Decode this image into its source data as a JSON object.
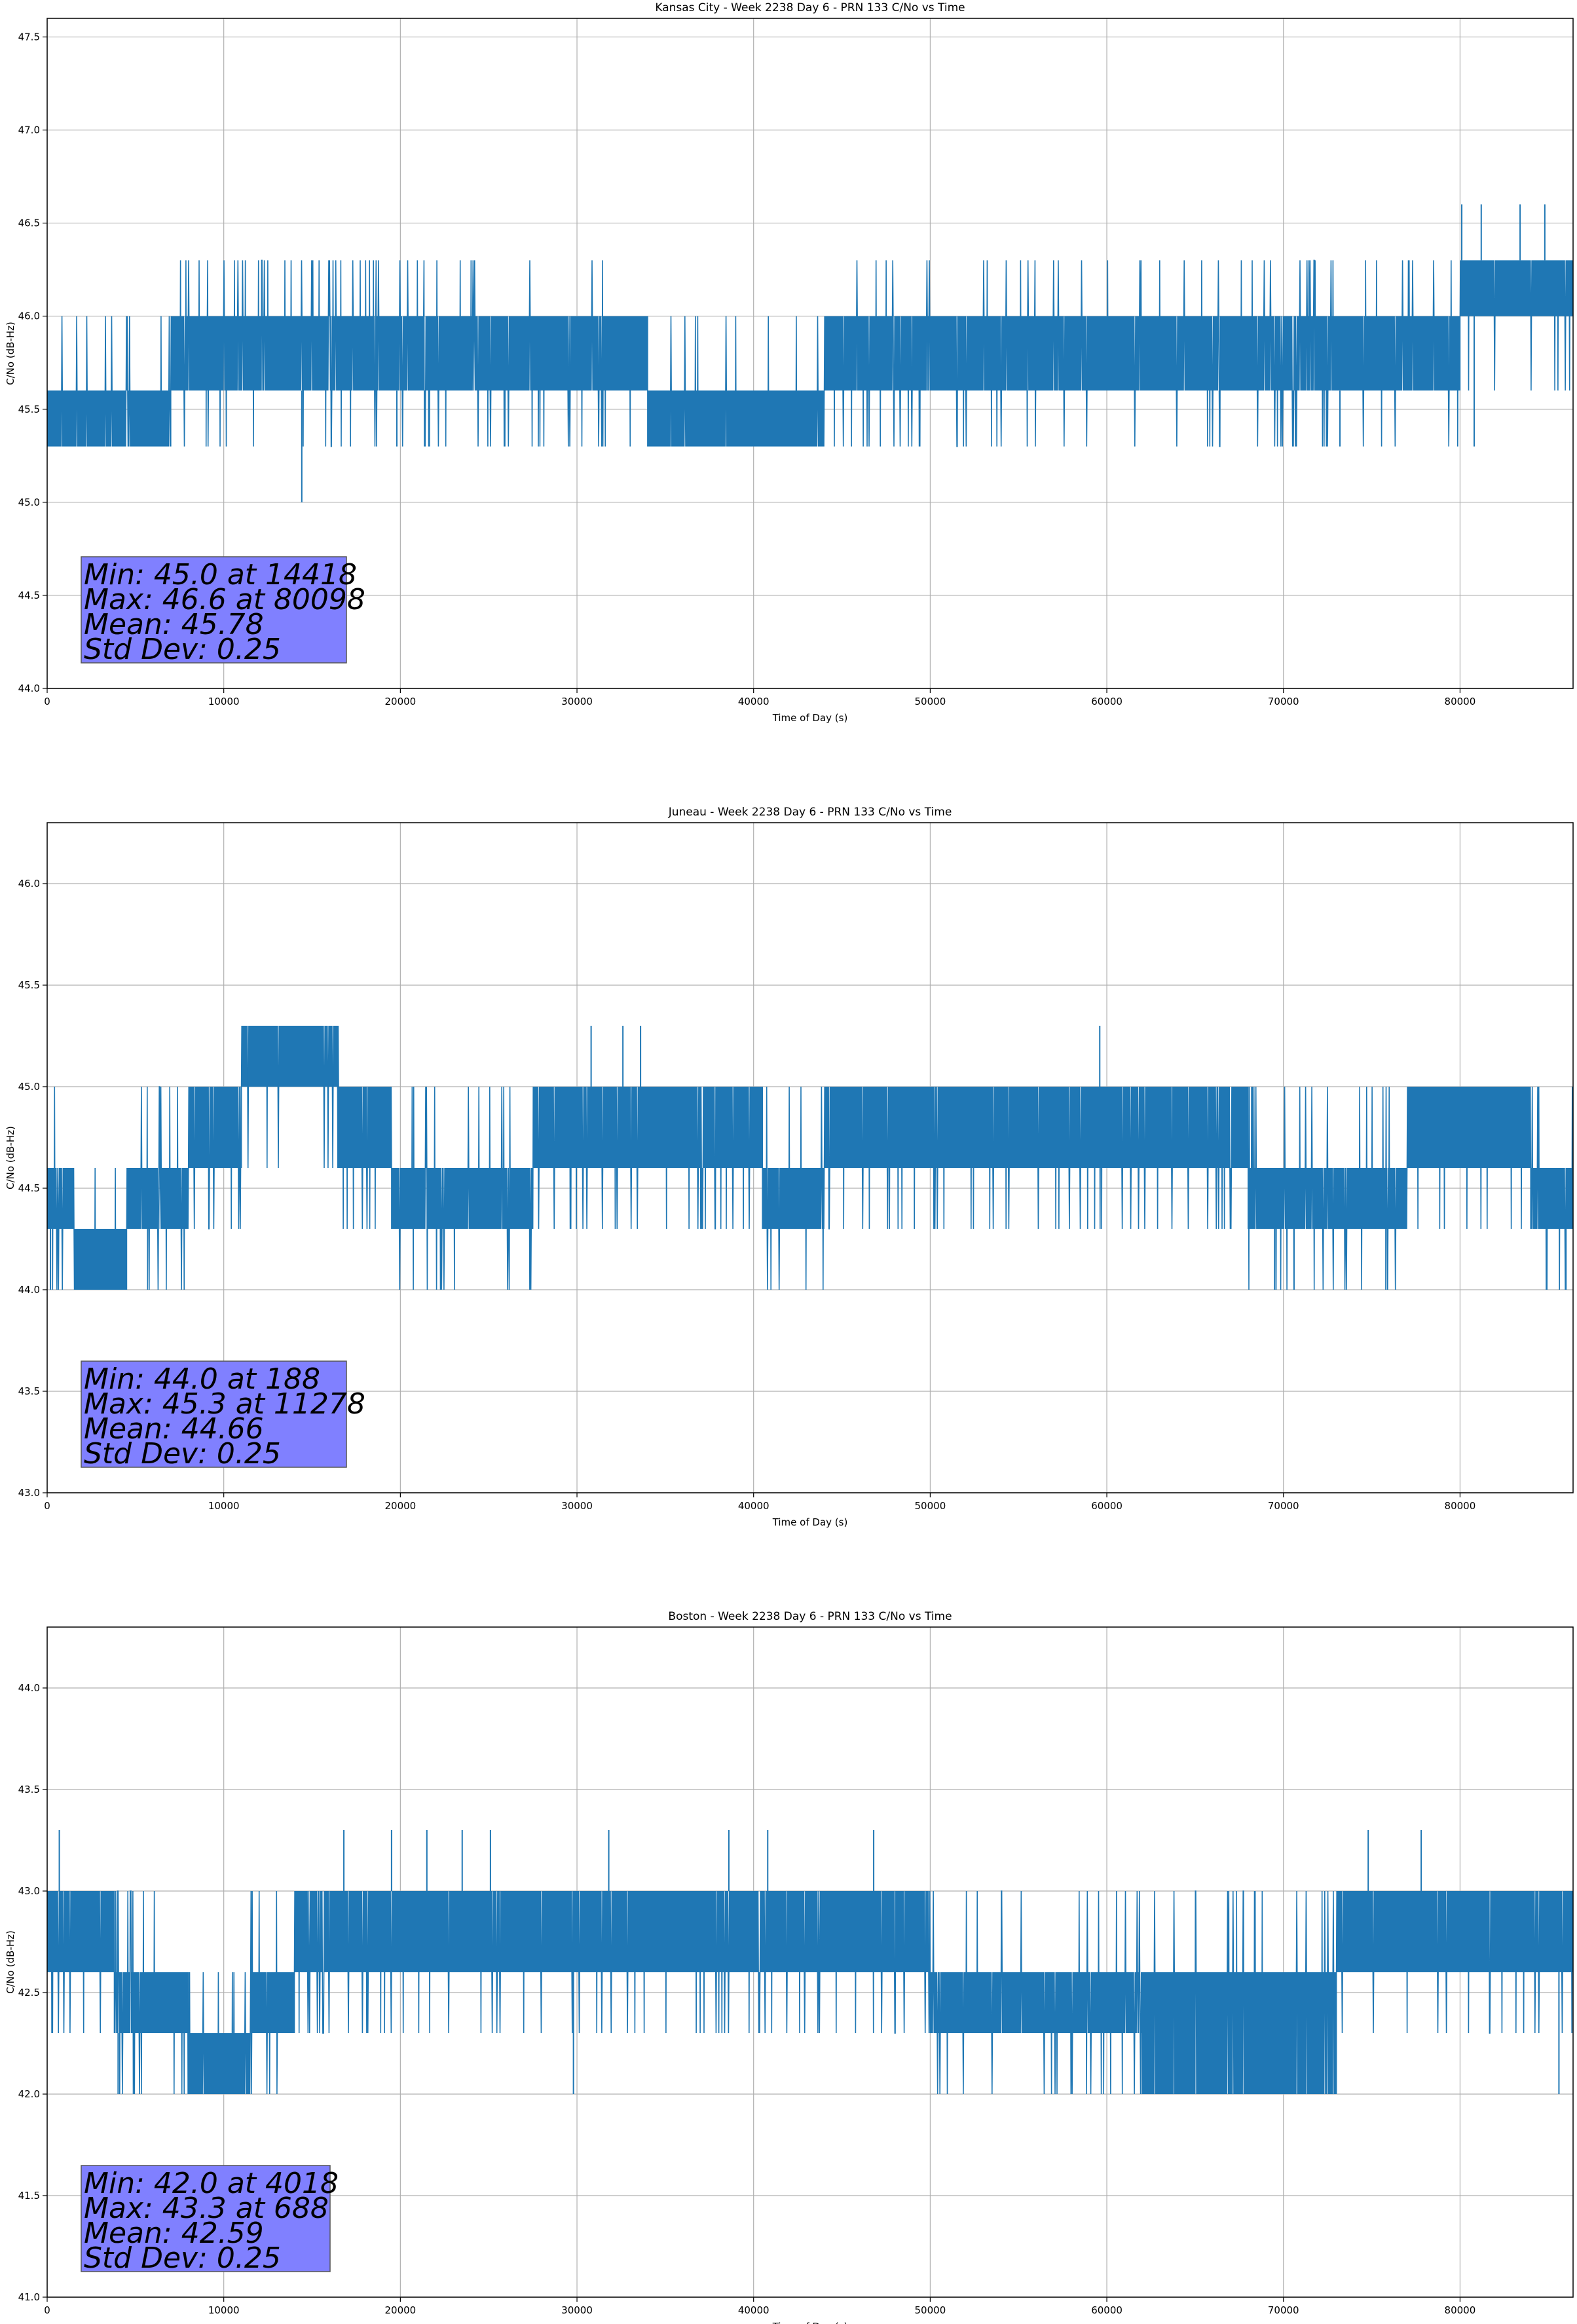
{
  "chart_data": [
    {
      "type": "line",
      "title": "Kansas City - Week 2238 Day 6 - PRN 133 C/No vs Time",
      "xlabel": "Time of Day (s)",
      "ylabel": "C/No (dB-Hz)",
      "xlim": [
        0,
        86400
      ],
      "ylim": [
        44.0,
        47.6
      ],
      "xticks": [
        "0",
        "10000",
        "20000",
        "30000",
        "40000",
        "50000",
        "60000",
        "70000",
        "80000"
      ],
      "yticks": [
        "44.0",
        "44.5",
        "45.0",
        "45.5",
        "46.0",
        "46.5",
        "47.0",
        "47.5"
      ],
      "grid": true,
      "line_color": "#1f77b4",
      "series": [
        {
          "levels": [
            45.3,
            45.6,
            46.0,
            46.3,
            46.6
          ],
          "segments": [
            {
              "x0": 0,
              "x1": 7000,
              "lo": 45.3,
              "hi": 45.6
            },
            {
              "x0": 7000,
              "x1": 9000,
              "lo": 45.6,
              "hi": 46.0
            },
            {
              "x0": 9000,
              "x1": 19000,
              "lo": 45.6,
              "hi": 46.0
            },
            {
              "x0": 19000,
              "x1": 22000,
              "lo": 45.6,
              "hi": 46.0
            },
            {
              "x0": 22000,
              "x1": 34000,
              "lo": 45.6,
              "hi": 46.0
            },
            {
              "x0": 34000,
              "x1": 44000,
              "lo": 45.3,
              "hi": 45.6
            },
            {
              "x0": 44000,
              "x1": 47000,
              "lo": 45.6,
              "hi": 46.0
            },
            {
              "x0": 47000,
              "x1": 80000,
              "lo": 45.6,
              "hi": 46.0
            },
            {
              "x0": 80000,
              "x1": 86400,
              "lo": 46.0,
              "hi": 46.3
            }
          ],
          "spikes": [
            {
              "x": 14418,
              "y": 45.0
            },
            {
              "x": 80098,
              "y": 46.6
            },
            {
              "x": 81200,
              "y": 46.6
            },
            {
              "x": 83400,
              "y": 46.6
            },
            {
              "x": 84800,
              "y": 46.6
            },
            {
              "x": 19800,
              "y": 45.3
            },
            {
              "x": 73200,
              "y": 45.3
            },
            {
              "x": 80800,
              "y": 45.3
            }
          ]
        }
      ],
      "stats": [
        "Min: 45.0 at 14418",
        "Max: 46.6 at 80098",
        "Mean: 45.78",
        "Std Dev: 0.25"
      ]
    },
    {
      "type": "line",
      "title": "Juneau - Week 2238 Day 6 - PRN 133 C/No vs Time",
      "xlabel": "Time of Day (s)",
      "ylabel": "C/No (dB-Hz)",
      "xlim": [
        0,
        86400
      ],
      "ylim": [
        43.0,
        46.3
      ],
      "xticks": [
        "0",
        "10000",
        "20000",
        "30000",
        "40000",
        "50000",
        "60000",
        "70000",
        "80000"
      ],
      "yticks": [
        "43.0",
        "43.5",
        "44.0",
        "44.5",
        "45.0",
        "45.5",
        "46.0"
      ],
      "grid": true,
      "line_color": "#1f77b4",
      "series": [
        {
          "levels": [
            44.0,
            44.3,
            44.6,
            45.0,
            45.3
          ],
          "segments": [
            {
              "x0": 0,
              "x1": 1500,
              "lo": 44.3,
              "hi": 44.6
            },
            {
              "x0": 1500,
              "x1": 4500,
              "lo": 44.0,
              "hi": 44.3
            },
            {
              "x0": 4500,
              "x1": 8000,
              "lo": 44.3,
              "hi": 44.6
            },
            {
              "x0": 8000,
              "x1": 11000,
              "lo": 44.6,
              "hi": 45.0
            },
            {
              "x0": 11000,
              "x1": 16500,
              "lo": 45.0,
              "hi": 45.3
            },
            {
              "x0": 16500,
              "x1": 19500,
              "lo": 44.6,
              "hi": 45.0
            },
            {
              "x0": 19500,
              "x1": 27500,
              "lo": 44.3,
              "hi": 44.6
            },
            {
              "x0": 27500,
              "x1": 40500,
              "lo": 44.6,
              "hi": 45.0
            },
            {
              "x0": 40500,
              "x1": 44000,
              "lo": 44.3,
              "hi": 44.6
            },
            {
              "x0": 44000,
              "x1": 68000,
              "lo": 44.6,
              "hi": 45.0
            },
            {
              "x0": 68000,
              "x1": 77000,
              "lo": 44.3,
              "hi": 44.6
            },
            {
              "x0": 77000,
              "x1": 84000,
              "lo": 44.6,
              "hi": 45.0
            },
            {
              "x0": 84000,
              "x1": 86400,
              "lo": 44.3,
              "hi": 44.6
            }
          ],
          "spikes": [
            {
              "x": 188,
              "y": 44.0
            },
            {
              "x": 11278,
              "y": 45.3
            },
            {
              "x": 30800,
              "y": 45.3
            },
            {
              "x": 32600,
              "y": 45.3
            },
            {
              "x": 33600,
              "y": 45.3
            },
            {
              "x": 59600,
              "y": 45.3
            },
            {
              "x": 69500,
              "y": 44.0
            },
            {
              "x": 70600,
              "y": 44.0
            },
            {
              "x": 75800,
              "y": 44.0
            },
            {
              "x": 86000,
              "y": 44.0
            }
          ]
        }
      ],
      "stats": [
        "Min: 44.0 at 188",
        "Max: 45.3 at 11278",
        "Mean: 44.66",
        "Std Dev: 0.25"
      ]
    },
    {
      "type": "line",
      "title": "Boston - Week 2238 Day 6 - PRN 133 C/No vs Time",
      "xlabel": "Time of Day (s)",
      "ylabel": "C/No (dB-Hz)",
      "xlim": [
        0,
        86400
      ],
      "ylim": [
        41.0,
        44.3
      ],
      "xticks": [
        "0",
        "10000",
        "20000",
        "30000",
        "40000",
        "50000",
        "60000",
        "70000",
        "80000"
      ],
      "yticks": [
        "41.0",
        "41.5",
        "42.0",
        "42.5",
        "43.0",
        "43.5",
        "44.0"
      ],
      "grid": true,
      "line_color": "#1f77b4",
      "series": [
        {
          "levels": [
            42.0,
            42.3,
            42.6,
            43.0,
            43.3
          ],
          "segments": [
            {
              "x0": 0,
              "x1": 3800,
              "lo": 42.6,
              "hi": 43.0
            },
            {
              "x0": 3800,
              "x1": 8000,
              "lo": 42.3,
              "hi": 42.6
            },
            {
              "x0": 8000,
              "x1": 11500,
              "lo": 42.0,
              "hi": 42.3
            },
            {
              "x0": 11500,
              "x1": 14000,
              "lo": 42.3,
              "hi": 42.6
            },
            {
              "x0": 14000,
              "x1": 50000,
              "lo": 42.6,
              "hi": 43.0
            },
            {
              "x0": 50000,
              "x1": 62000,
              "lo": 42.3,
              "hi": 42.6
            },
            {
              "x0": 62000,
              "x1": 73000,
              "lo": 42.0,
              "hi": 42.6
            },
            {
              "x0": 73000,
              "x1": 86400,
              "lo": 42.6,
              "hi": 43.0
            }
          ],
          "spikes": [
            {
              "x": 688,
              "y": 43.3
            },
            {
              "x": 4018,
              "y": 42.0
            },
            {
              "x": 16800,
              "y": 43.3
            },
            {
              "x": 19500,
              "y": 43.3
            },
            {
              "x": 21500,
              "y": 43.3
            },
            {
              "x": 23500,
              "y": 43.3
            },
            {
              "x": 25100,
              "y": 43.3
            },
            {
              "x": 29800,
              "y": 42.0
            },
            {
              "x": 31800,
              "y": 43.3
            },
            {
              "x": 38600,
              "y": 43.3
            },
            {
              "x": 40800,
              "y": 43.3
            },
            {
              "x": 46800,
              "y": 43.3
            },
            {
              "x": 74800,
              "y": 43.3
            },
            {
              "x": 77800,
              "y": 43.3
            },
            {
              "x": 85600,
              "y": 42.0
            }
          ]
        }
      ],
      "stats": [
        "Min: 42.0 at 4018",
        "Max: 43.3 at 688",
        "Mean: 42.59",
        "Std Dev: 0.25"
      ]
    }
  ]
}
